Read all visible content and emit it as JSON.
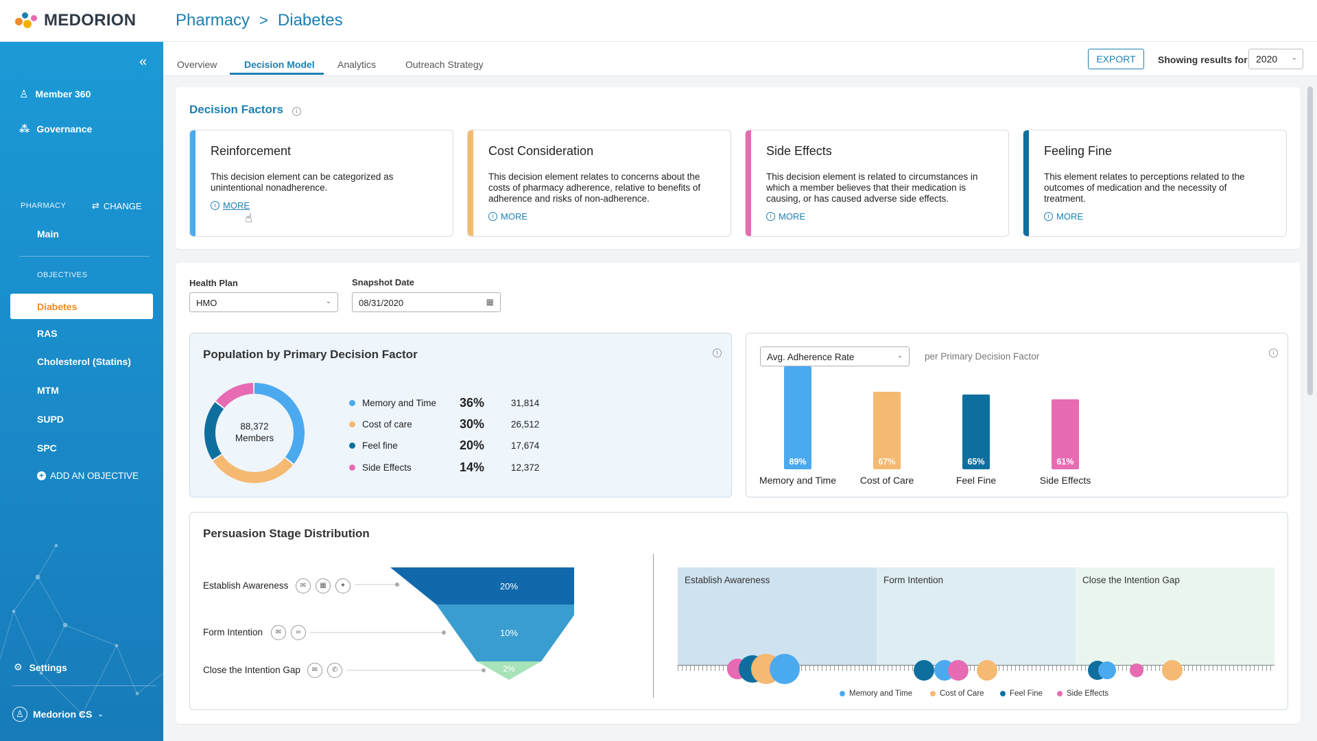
{
  "app": {
    "name": "MEDORION"
  },
  "breadcrumb": {
    "section": "Pharmacy",
    "sep": ">",
    "page": "Diabetes"
  },
  "sidebar": {
    "collapse": "«",
    "top_items": [
      {
        "label": "Member 360",
        "icon": "person-icon"
      },
      {
        "label": "Governance",
        "icon": "network-icon"
      }
    ],
    "pharmacy_label": "PHARMACY",
    "change_label": "CHANGE",
    "main_label": "Main",
    "objectives_label": "OBJECTIVES",
    "objectives": [
      "Diabetes",
      "RAS",
      "Cholesterol (Statins)",
      "MTM",
      "SUPD",
      "SPC"
    ],
    "active_objective": "Diabetes",
    "add_objective": "ADD AN OBJECTIVE",
    "settings": "Settings",
    "user": "Medorion CS"
  },
  "tabs": {
    "items": [
      "Overview",
      "Decision Model",
      "Analytics",
      "Outreach Strategy"
    ],
    "active": "Decision Model"
  },
  "toolbar": {
    "export_label": "EXPORT",
    "showing_label": "Showing results for",
    "year": "2020"
  },
  "decision_factors": {
    "title": "Decision Factors",
    "cards": [
      {
        "title": "Reinforcement",
        "desc": "This decision element can be categorized as unintentional  nonadherence.",
        "more": "MORE",
        "color": "#4ba9f0"
      },
      {
        "title": "Cost Consideration",
        "desc": "This decision element relates to concerns about the costs of pharmacy adherence,  relative to benefits of adherence and risks of non-adherence.",
        "more": "MORE",
        "color": "#f5b971"
      },
      {
        "title": "Side Effects",
        "desc": "This decision element is related to circumstances in which a member believes that their medication is causing, or has caused adverse side effects.",
        "more": "MORE",
        "color": "#e76bb2"
      },
      {
        "title": "Feeling Fine",
        "desc": "This element relates to perceptions related to the outcomes of medication and the necessity of treatment.",
        "more": "MORE",
        "color": "#0e6f9f"
      }
    ]
  },
  "filters": {
    "health_plan_label": "Health Plan",
    "health_plan_value": "HMO",
    "snapshot_label": "Snapshot Date",
    "snapshot_value": "08/31/2020"
  },
  "population": {
    "title": "Population by Primary Decision Factor",
    "total": "88,372",
    "total_label": "Members",
    "rows": [
      {
        "label": "Memory and Time",
        "pct": "36%",
        "count": "31,814",
        "color": "#4ba9f0"
      },
      {
        "label": "Cost of care",
        "pct": "30%",
        "count": "26,512",
        "color": "#f5b971"
      },
      {
        "label": "Feel fine",
        "pct": "20%",
        "count": "17,674",
        "color": "#0e6f9f"
      },
      {
        "label": "Side Effects",
        "pct": "14%",
        "count": "12,372",
        "color": "#e76bb2"
      }
    ]
  },
  "adherence": {
    "select": "Avg. Adherence Rate",
    "subtitle": "per Primary Decision Factor"
  },
  "chart_data": {
    "type": "bar",
    "categories": [
      "Memory and Time",
      "Cost of Care",
      "Feel Fine",
      "Side Effects"
    ],
    "values": [
      89,
      67,
      65,
      61
    ],
    "data_labels": [
      "89%",
      "67%",
      "65%",
      "61%"
    ],
    "colors": [
      "#4ba9f0",
      "#f5b971",
      "#0e6f9f",
      "#e76bb2"
    ],
    "title": "",
    "xlabel": "",
    "ylabel": "",
    "ylim": [
      0,
      100
    ]
  },
  "persuasion": {
    "title": "Persuasion Stage Distribution",
    "stages": [
      {
        "label": "Establish Awareness",
        "pct": "20%",
        "icons": [
          "chat-icon",
          "calendar-icon",
          "twitter-icon"
        ]
      },
      {
        "label": "Form Intention",
        "pct": "10%",
        "icons": [
          "mail-icon",
          "voicemail-icon"
        ]
      },
      {
        "label": "Close the Intention Gap",
        "pct": "2%",
        "icons": [
          "chat-icon",
          "phone-icon"
        ]
      }
    ],
    "timeline_labels": [
      "Establish Awareness",
      "Form Intention",
      "Close the Intention Gap"
    ],
    "legend": [
      {
        "label": "Memory and Time",
        "color": "#4ba9f0"
      },
      {
        "label": "Cost of Care",
        "color": "#f5b971"
      },
      {
        "label": "Feel Fine",
        "color": "#0e6f9f"
      },
      {
        "label": "Side Effects",
        "color": "#e76bb2"
      }
    ]
  }
}
